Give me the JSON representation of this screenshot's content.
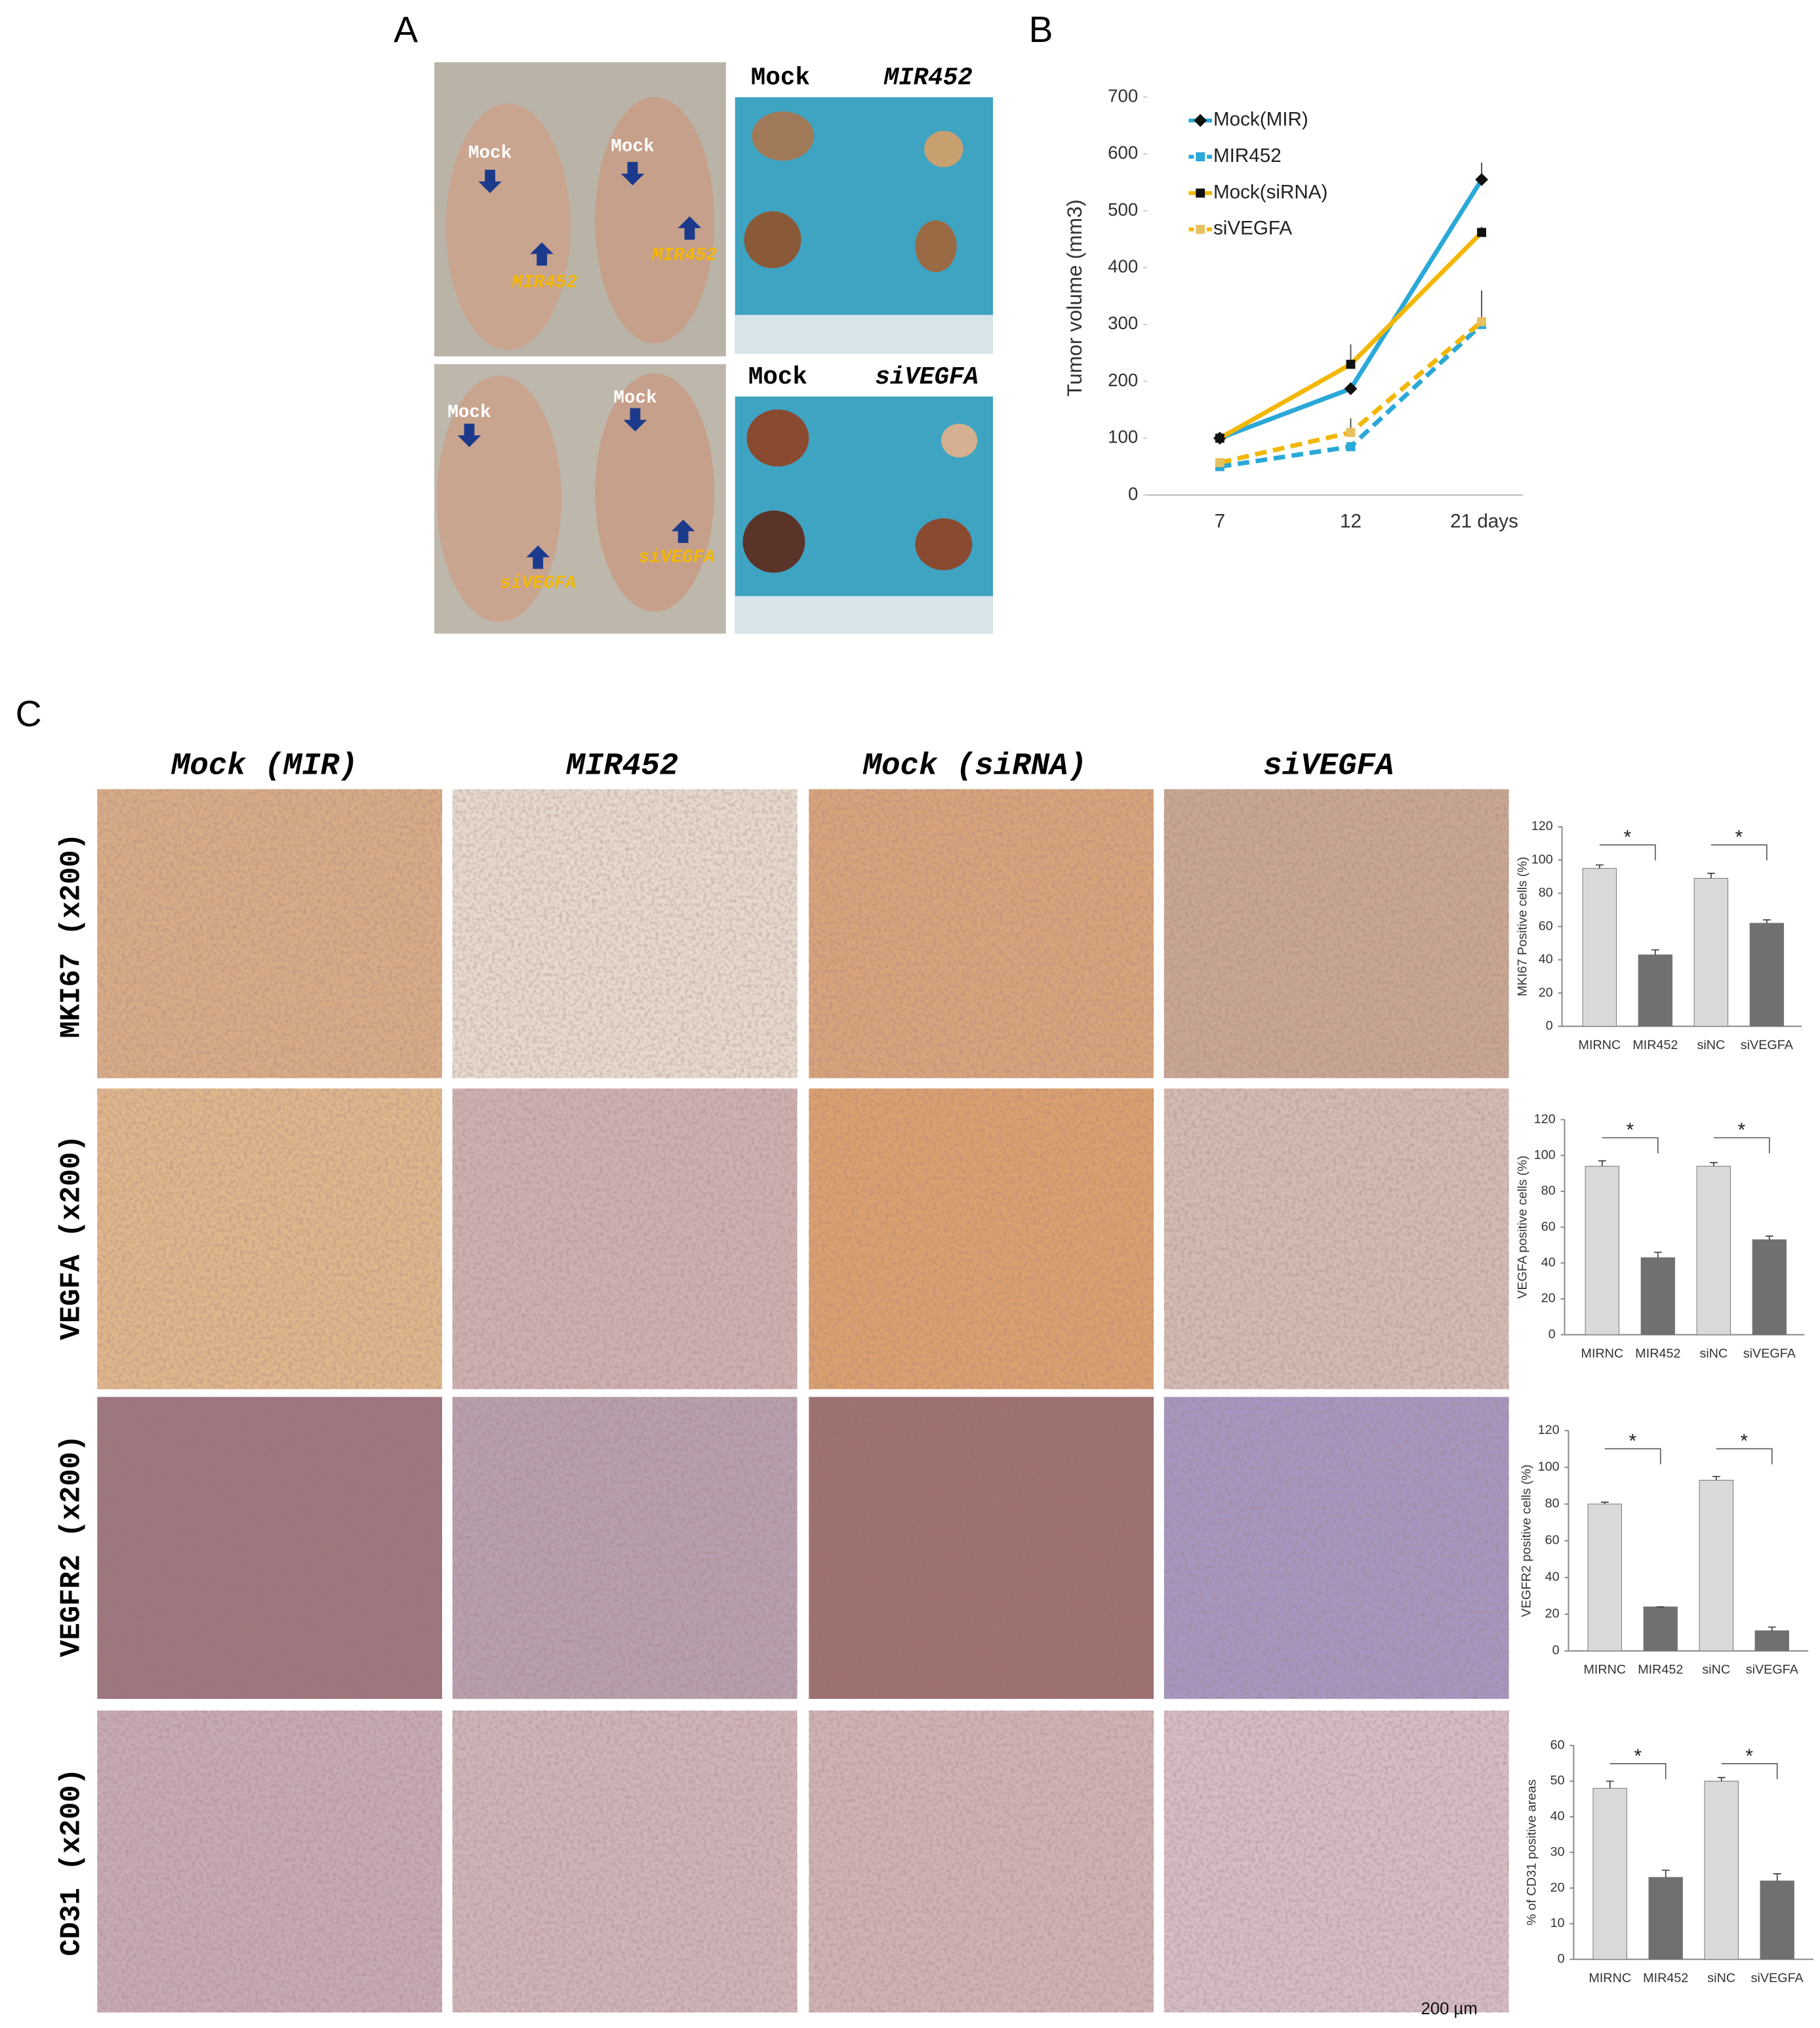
{
  "panel_labels": [
    "A",
    "B",
    "C"
  ],
  "panel_a": {
    "tumor_labels": [
      "Mock",
      "MIR452",
      "Mock",
      "siVEGFA"
    ],
    "mouse_labels": [
      "Mock",
      "Mock",
      "MIR452",
      "MIR452",
      "Mock",
      "Mock",
      "siVEGFA",
      "siVEGFA"
    ]
  },
  "panel_c": {
    "columns": [
      "Mock (MIR)",
      "MIR452",
      "Mock (siRNA)",
      "siVEGFA"
    ],
    "rows": [
      "MKI67 (x200)",
      "VEGFA (x200)",
      "VEGFR2 (x200)",
      "CD31 (x200)"
    ],
    "scale_bar": "200 µm"
  },
  "chart_data": [
    {
      "type": "line",
      "y_label": "Tumor volume (mm3)",
      "categories": [
        "7",
        "12",
        "21 days"
      ],
      "ylim": [
        0,
        700
      ],
      "yticks": [
        0,
        100,
        200,
        300,
        400,
        500,
        600,
        700
      ],
      "series": [
        {
          "name": "Mock(MIR)",
          "color": "#2aa8d8",
          "dashed": false,
          "marker": "diamond",
          "marker_color": "#111111",
          "values": [
            100,
            187,
            555
          ],
          "errors": [
            5,
            10,
            30
          ]
        },
        {
          "name": "MIR452",
          "color": "#2aa8d8",
          "dashed": true,
          "marker": "square",
          "marker_color": "#2aa8d8",
          "values": [
            50,
            85,
            300
          ],
          "errors": [
            3,
            8,
            10
          ]
        },
        {
          "name": "Mock(siRNA)",
          "color": "#f2b705",
          "dashed": false,
          "marker": "square",
          "marker_color": "#111111",
          "values": [
            100,
            230,
            462
          ],
          "errors": [
            5,
            35,
            10
          ]
        },
        {
          "name": "siVEGFA",
          "color": "#f2b705",
          "dashed": true,
          "marker": "square",
          "marker_color": "#e8c060",
          "values": [
            57,
            110,
            305
          ],
          "errors": [
            5,
            25,
            55
          ]
        }
      ]
    },
    {
      "type": "bar",
      "y_label": "MKI67 Positive cells (%)",
      "categories": [
        "MIRNC",
        "MIR452",
        "siNC",
        "siVEGFA"
      ],
      "values": [
        95,
        43,
        89,
        62
      ],
      "errors": [
        2,
        3,
        3,
        2
      ],
      "colors": [
        "#d9d9d9",
        "#707070",
        "#d9d9d9",
        "#707070"
      ],
      "ylim": [
        0,
        120
      ],
      "yticks": [
        0,
        20,
        40,
        60,
        80,
        100,
        120
      ],
      "annotations": [
        "*",
        "*"
      ]
    },
    {
      "type": "bar",
      "y_label": "VEGFA positive cells (%)",
      "categories": [
        "MIRNC",
        "MIR452",
        "siNC",
        "siVEGFA"
      ],
      "values": [
        94,
        43,
        94,
        53
      ],
      "errors": [
        3,
        3,
        2,
        2
      ],
      "colors": [
        "#d9d9d9",
        "#707070",
        "#d9d9d9",
        "#707070"
      ],
      "ylim": [
        0,
        120
      ],
      "yticks": [
        0,
        20,
        40,
        60,
        80,
        100,
        120
      ],
      "annotations": [
        "*",
        "*"
      ]
    },
    {
      "type": "bar",
      "y_label": "VEGFR2 positive cells (%)",
      "categories": [
        "MIRNC",
        "MIR452",
        "siNC",
        "siVEGFA"
      ],
      "values": [
        80,
        24,
        93,
        11
      ],
      "errors": [
        1,
        0,
        2,
        2
      ],
      "colors": [
        "#d9d9d9",
        "#707070",
        "#d9d9d9",
        "#707070"
      ],
      "ylim": [
        0,
        120
      ],
      "yticks": [
        0,
        20,
        40,
        60,
        80,
        100,
        120
      ],
      "annotations": [
        "*",
        "*"
      ]
    },
    {
      "type": "bar",
      "y_label": "% of CD31 positive areas",
      "categories": [
        "MIRNC",
        "MIR452",
        "siNC",
        "siVEGFA"
      ],
      "values": [
        48,
        23,
        50,
        22
      ],
      "errors": [
        2,
        2,
        1,
        2
      ],
      "colors": [
        "#d9d9d9",
        "#707070",
        "#d9d9d9",
        "#707070"
      ],
      "ylim": [
        0,
        60
      ],
      "yticks": [
        0,
        10,
        20,
        30,
        40,
        50,
        60
      ],
      "annotations": [
        "*",
        "*"
      ]
    }
  ]
}
